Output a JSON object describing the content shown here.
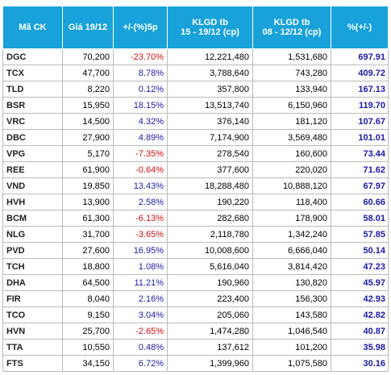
{
  "table": {
    "header": [
      [
        "Mã CK"
      ],
      [
        "Giá 19/12"
      ],
      [
        "+/-(%)5p"
      ],
      [
        "KLGD tb",
        "15 - 19/12 (cp)"
      ],
      [
        "KLGD tb",
        "08 - 12/12 (cp)"
      ],
      [
        "%(+/-)"
      ]
    ],
    "rows": [
      [
        "DGC",
        "70,200",
        "-23.70%",
        "12,221,480",
        "1,531,680",
        "697.91"
      ],
      [
        "TCX",
        "47,700",
        "8.78%",
        "3,788,640",
        "743,280",
        "409.72"
      ],
      [
        "TLD",
        "8,220",
        "0.12%",
        "357,800",
        "133,940",
        "167.13"
      ],
      [
        "BSR",
        "15,950",
        "18.15%",
        "13,513,740",
        "6,150,960",
        "119.70"
      ],
      [
        "VRC",
        "14,500",
        "4.32%",
        "376,140",
        "181,120",
        "107.67"
      ],
      [
        "DBC",
        "27,900",
        "4.89%",
        "7,174,900",
        "3,569,480",
        "101.01"
      ],
      [
        "VPG",
        "5,170",
        "-7.35%",
        "278,540",
        "160,600",
        "73.44"
      ],
      [
        "REE",
        "61,900",
        "-0.64%",
        "377,600",
        "220,020",
        "71.62"
      ],
      [
        "VND",
        "19,850",
        "13.43%",
        "18,288,480",
        "10,888,120",
        "67.97"
      ],
      [
        "HVH",
        "13,900",
        "2.58%",
        "190,220",
        "118,400",
        "60.66"
      ],
      [
        "BCM",
        "61,300",
        "-6.13%",
        "282,680",
        "178,900",
        "58.01"
      ],
      [
        "NLG",
        "31,700",
        "-3.65%",
        "2,118,780",
        "1,342,240",
        "57.85"
      ],
      [
        "PVD",
        "27,600",
        "16.95%",
        "10,008,600",
        "6,666,040",
        "50.14"
      ],
      [
        "TCH",
        "18,800",
        "1.08%",
        "5,616,040",
        "3,814,420",
        "47.23"
      ],
      [
        "DHA",
        "64,500",
        "11.21%",
        "190,960",
        "130,820",
        "45.97"
      ],
      [
        "FIR",
        "8,040",
        "2.16%",
        "223,400",
        "156,300",
        "42.93"
      ],
      [
        "TCO",
        "9,150",
        "3.04%",
        "205,060",
        "143,580",
        "42.82"
      ],
      [
        "HVN",
        "25,700",
        "-2.65%",
        "1,474,280",
        "1,046,540",
        "40.87"
      ],
      [
        "TTA",
        "10,550",
        "0.48%",
        "137,612",
        "101,200",
        "35.98"
      ],
      [
        "FTS",
        "34,150",
        "6.72%",
        "1,399,960",
        "1,075,580",
        "30.16"
      ]
    ]
  }
}
